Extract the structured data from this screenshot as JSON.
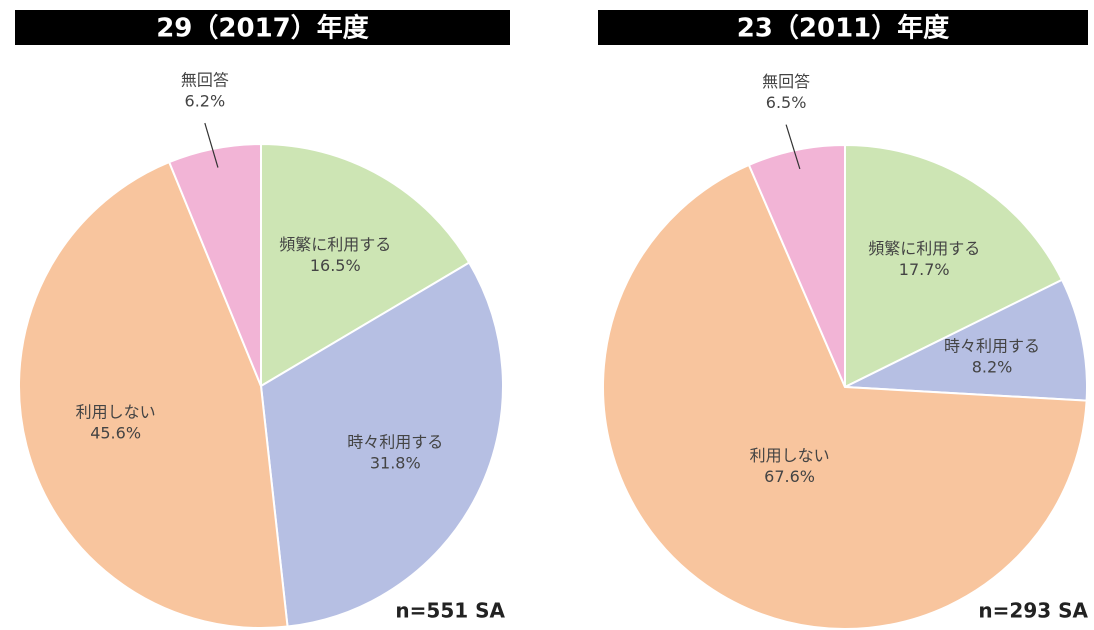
{
  "chart_data": [
    {
      "type": "pie",
      "title": "29（2017）年度",
      "note": "n=551 SA",
      "categories": [
        "頻繁に利用する",
        "時々利用する",
        "利用しない",
        "無回答"
      ],
      "values": [
        16.5,
        31.8,
        45.6,
        6.2
      ],
      "value_labels": [
        "16.5%",
        "31.8%",
        "45.6%",
        "6.2%"
      ],
      "colors": [
        "#cde5b4",
        "#b6bfe3",
        "#f8c59e",
        "#f2b4d6"
      ]
    },
    {
      "type": "pie",
      "title": "23（2011）年度",
      "note": "n=293 SA",
      "categories": [
        "頻繁に利用する",
        "時々利用する",
        "利用しない",
        "無回答"
      ],
      "values": [
        17.7,
        8.2,
        67.6,
        6.5
      ],
      "value_labels": [
        "17.7%",
        "8.2%",
        "67.6%",
        "6.5%"
      ],
      "colors": [
        "#cde5b4",
        "#b6bfe3",
        "#f8c59e",
        "#f2b4d6"
      ]
    }
  ]
}
